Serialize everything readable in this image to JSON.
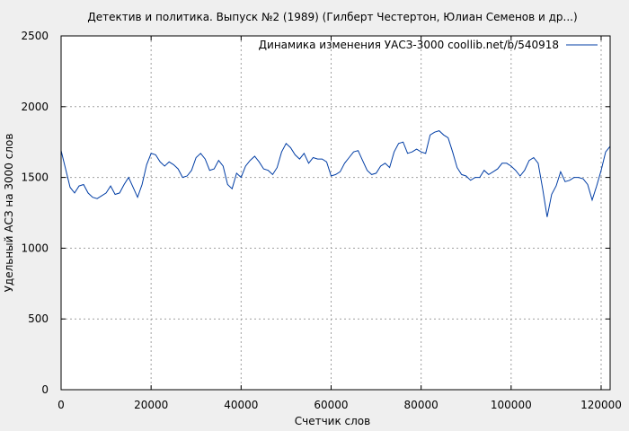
{
  "chart_data": {
    "type": "line",
    "title": "Детектив и политика. Выпуск №2 (1989) (Гилберт Честертон, Юлиан Семенов и др...)",
    "xlabel": "Счетчик слов",
    "ylabel": "Удельный АСЗ на 3000 слов",
    "xlim": [
      0,
      122000
    ],
    "ylim": [
      0,
      2500
    ],
    "x_ticks": [
      0,
      20000,
      40000,
      60000,
      80000,
      100000,
      120000
    ],
    "y_ticks": [
      0,
      500,
      1000,
      1500,
      2000,
      2500
    ],
    "grid": true,
    "legend_position": "top-right",
    "series": [
      {
        "name": "Динамика изменения УАСЗ-3000  coollib.net/b/540918",
        "color": "#003da5",
        "x": [
          0,
          1000,
          2000,
          3000,
          4000,
          5000,
          6000,
          7000,
          8000,
          9000,
          10000,
          11000,
          12000,
          13000,
          14000,
          15000,
          16000,
          17000,
          18000,
          19000,
          20000,
          21000,
          22000,
          23000,
          24000,
          25000,
          26000,
          27000,
          28000,
          29000,
          30000,
          31000,
          32000,
          33000,
          34000,
          35000,
          36000,
          37000,
          38000,
          39000,
          40000,
          41000,
          42000,
          43000,
          44000,
          45000,
          46000,
          47000,
          48000,
          49000,
          50000,
          51000,
          52000,
          53000,
          54000,
          55000,
          56000,
          57000,
          58000,
          59000,
          60000,
          61000,
          62000,
          63000,
          64000,
          65000,
          66000,
          67000,
          68000,
          69000,
          70000,
          71000,
          72000,
          73000,
          74000,
          75000,
          76000,
          77000,
          78000,
          79000,
          80000,
          81000,
          82000,
          83000,
          84000,
          85000,
          86000,
          87000,
          88000,
          89000,
          90000,
          91000,
          92000,
          93000,
          94000,
          95000,
          96000,
          97000,
          98000,
          99000,
          100000,
          101000,
          102000,
          103000,
          104000,
          105000,
          106000,
          107000,
          108000,
          109000,
          110000,
          111000,
          112000,
          113000,
          114000,
          115000,
          116000,
          117000,
          118000,
          119000,
          120000,
          121000,
          122000
        ],
        "y": [
          1690,
          1560,
          1430,
          1390,
          1440,
          1450,
          1390,
          1360,
          1350,
          1370,
          1390,
          1440,
          1380,
          1390,
          1450,
          1500,
          1430,
          1360,
          1450,
          1590,
          1670,
          1660,
          1610,
          1580,
          1610,
          1590,
          1560,
          1500,
          1510,
          1550,
          1640,
          1670,
          1630,
          1550,
          1560,
          1620,
          1580,
          1450,
          1420,
          1530,
          1500,
          1580,
          1620,
          1650,
          1610,
          1560,
          1550,
          1520,
          1570,
          1680,
          1740,
          1710,
          1660,
          1630,
          1670,
          1600,
          1640,
          1630,
          1630,
          1610,
          1510,
          1520,
          1540,
          1600,
          1640,
          1680,
          1690,
          1620,
          1550,
          1520,
          1530,
          1580,
          1600,
          1570,
          1680,
          1740,
          1750,
          1670,
          1680,
          1700,
          1680,
          1670,
          1800,
          1820,
          1830,
          1800,
          1780,
          1680,
          1570,
          1520,
          1510,
          1480,
          1500,
          1500,
          1550,
          1520,
          1540,
          1560,
          1600,
          1600,
          1580,
          1550,
          1510,
          1550,
          1620,
          1640,
          1600,
          1420,
          1220,
          1380,
          1440,
          1540,
          1470,
          1480,
          1500,
          1500,
          1490,
          1450,
          1340,
          1440,
          1550,
          1680,
          1720
        ]
      }
    ]
  }
}
